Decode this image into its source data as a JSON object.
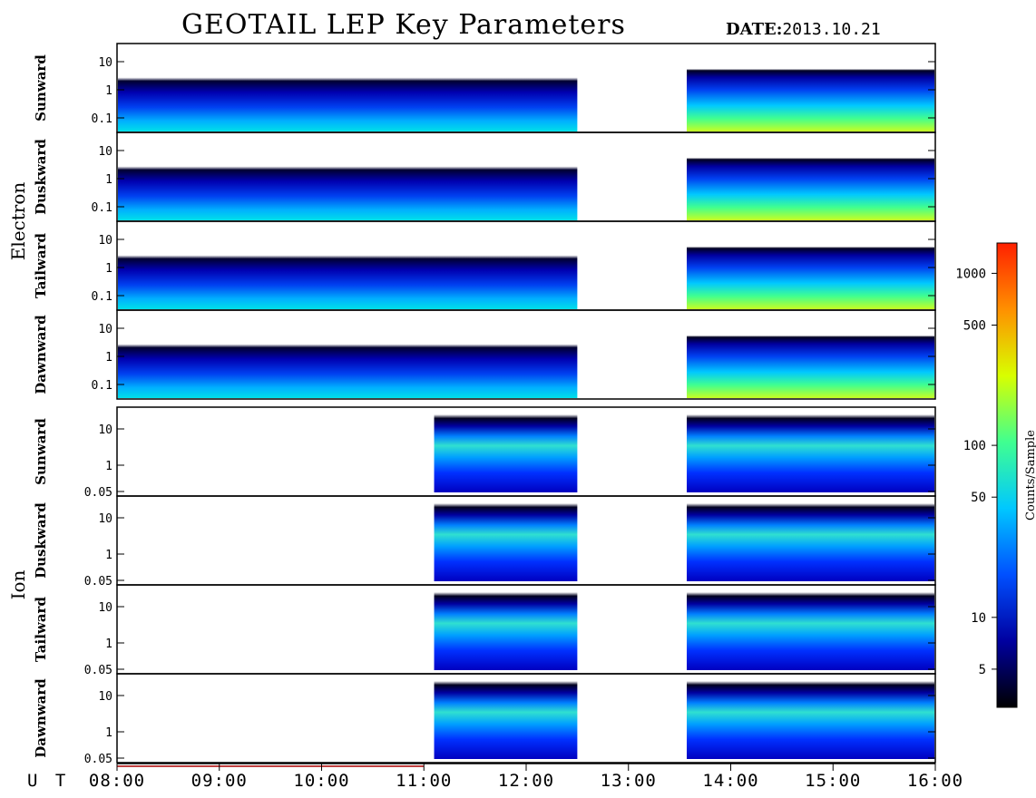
{
  "header": {
    "title": "GEOTAIL LEP Key Parameters",
    "date_label": "DATE:",
    "date_value": "2013.10.21"
  },
  "chart_data": {
    "type": "heatmap",
    "title": "GEOTAIL LEP Key Parameters",
    "x_axis": {
      "label": "U T",
      "ticks": [
        "08:00",
        "09:00",
        "10:00",
        "11:00",
        "12:00",
        "13:00",
        "14:00",
        "15:00",
        "16:00"
      ],
      "range_hours": [
        8,
        16
      ]
    },
    "data_gap_hours": [
      12.5,
      13.57
    ],
    "groups": [
      {
        "name": "Electron",
        "panels": [
          {
            "name": "Sunward",
            "yscale": "log",
            "yticks": [
              "10",
              "1",
              "0.1"
            ]
          },
          {
            "name": "Duskward",
            "yscale": "log",
            "yticks": [
              "10",
              "1",
              "0.1"
            ]
          },
          {
            "name": "Tailward",
            "yscale": "log",
            "yticks": [
              "10",
              "1",
              "0.1"
            ]
          },
          {
            "name": "Dawnward",
            "yscale": "log",
            "yticks": [
              "10",
              "1",
              "0.1"
            ]
          }
        ]
      },
      {
        "name": "Ion",
        "panels": [
          {
            "name": "Sunward",
            "yscale": "log",
            "yticks": [
              "10",
              "1",
              "0.05"
            ]
          },
          {
            "name": "Duskward",
            "yscale": "log",
            "yticks": [
              "10",
              "1",
              "0.05"
            ]
          },
          {
            "name": "Tailward",
            "yscale": "log",
            "yticks": [
              "10",
              "1",
              "0.05"
            ]
          },
          {
            "name": "Dawnward",
            "yscale": "log",
            "yticks": [
              "10",
              "1",
              "0.05"
            ]
          }
        ]
      }
    ],
    "colorbar": {
      "label": "Counts/Sample",
      "scale": "log",
      "range": [
        3,
        1500
      ],
      "ticks": [
        "1000",
        "500",
        "100",
        "50",
        "10",
        "5"
      ],
      "tick_values": [
        1000,
        500,
        100,
        50,
        10,
        5
      ],
      "colors": [
        "#000000",
        "#0000a0",
        "#0050ff",
        "#00c8ff",
        "#40ff90",
        "#d8ff00",
        "#ff9000",
        "#ff2000"
      ]
    }
  }
}
